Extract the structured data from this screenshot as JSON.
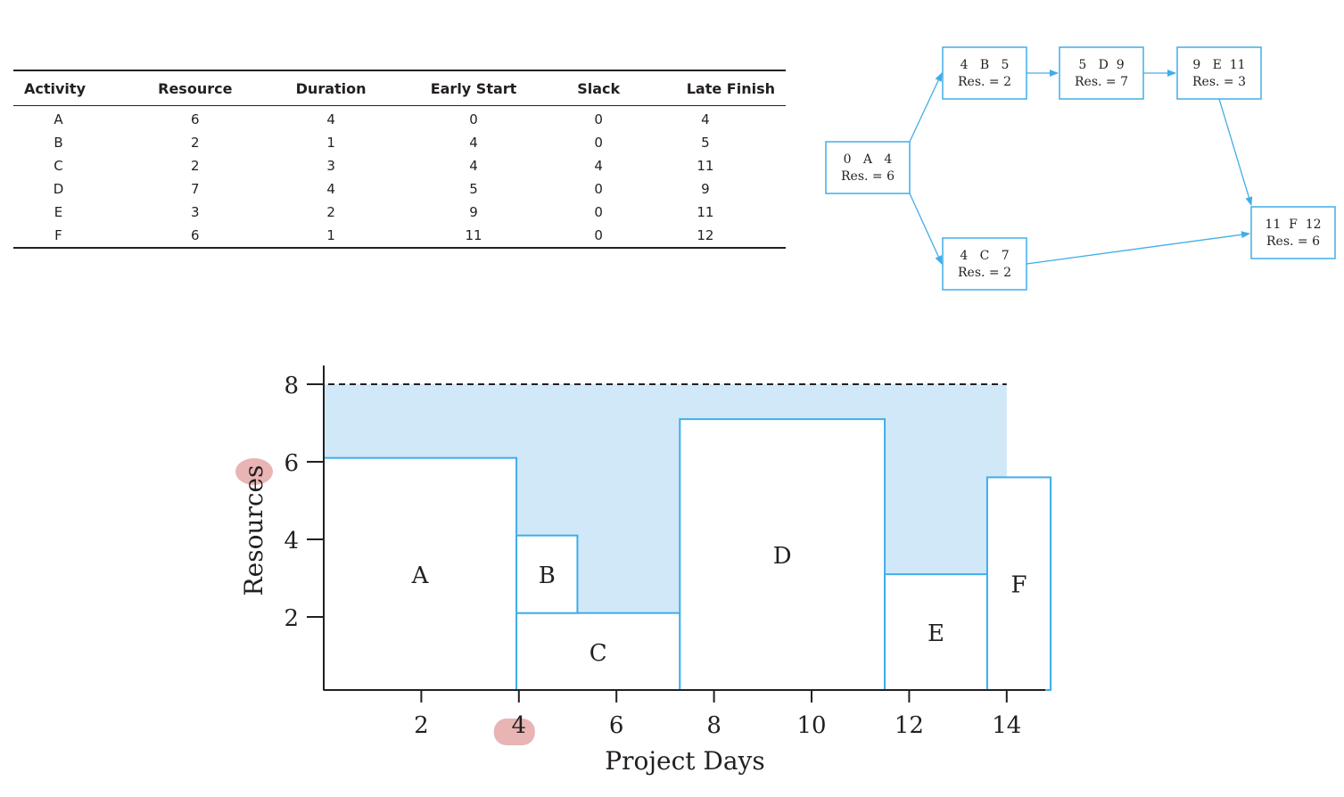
{
  "table": {
    "headers": [
      "Activity",
      "Resource",
      "Duration",
      "Early Start",
      "Slack",
      "Late Finish"
    ],
    "rows": [
      [
        "A",
        "6",
        "4",
        "0",
        "0",
        "4"
      ],
      [
        "B",
        "2",
        "1",
        "4",
        "0",
        "5"
      ],
      [
        "C",
        "2",
        "3",
        "4",
        "4",
        "11"
      ],
      [
        "D",
        "7",
        "4",
        "5",
        "0",
        "9"
      ],
      [
        "E",
        "3",
        "2",
        "9",
        "0",
        "11"
      ],
      [
        "F",
        "6",
        "1",
        "11",
        "0",
        "12"
      ]
    ]
  },
  "network": {
    "nodes": [
      {
        "id": "A",
        "top": "0   A   4",
        "bottom": "Res. = 6"
      },
      {
        "id": "B",
        "top": "4   B   5",
        "bottom": "Res. = 2"
      },
      {
        "id": "C",
        "top": "4   C   7",
        "bottom": "Res. = 2"
      },
      {
        "id": "D",
        "top": "5   D  9",
        "bottom": "Res. = 7"
      },
      {
        "id": "E",
        "top": "9   E  11",
        "bottom": "Res. = 3"
      },
      {
        "id": "F",
        "top": "11  F  12",
        "bottom": "Res. = 6"
      }
    ],
    "edges": [
      [
        "A",
        "B"
      ],
      [
        "A",
        "C"
      ],
      [
        "B",
        "D"
      ],
      [
        "D",
        "E"
      ],
      [
        "E",
        "F"
      ],
      [
        "C",
        "F"
      ]
    ],
    "colors": {
      "line": "#40ade8"
    }
  },
  "chart_data": {
    "type": "area",
    "xlabel": "Project Days",
    "ylabel": "Resources",
    "xlim": [
      0.2,
      14.8
    ],
    "ylim": [
      0.2,
      8.5
    ],
    "xticks": [
      2,
      4,
      6,
      8,
      10,
      12,
      14
    ],
    "yticks": [
      2,
      4,
      6,
      8
    ],
    "capacity_line": 8,
    "capacity_line_x": [
      0,
      14
    ],
    "available_region_color": "#d1e8f9",
    "block_outline_color": "#40ade8",
    "blocks": [
      {
        "label": "A",
        "x0": 0,
        "x1": 3.95,
        "y0": 0,
        "y1": 6.1
      },
      {
        "label": "C",
        "x0": 3.95,
        "x1": 7.3,
        "y0": 0,
        "y1": 2.1
      },
      {
        "label": "B",
        "x0": 3.95,
        "x1": 5.2,
        "y0": 2.1,
        "y1": 4.1
      },
      {
        "label": "D",
        "x0": 7.3,
        "x1": 11.5,
        "y0": 0,
        "y1": 7.1
      },
      {
        "label": "E",
        "x0": 11.5,
        "x1": 13.6,
        "y0": 0,
        "y1": 3.1
      },
      {
        "label": "F",
        "x0": 13.6,
        "x1": 14.9,
        "y0": 0,
        "y1": 5.6
      }
    ],
    "highlight_color": "#e8b4b4",
    "highlights": [
      {
        "axis": "y",
        "value": 6
      },
      {
        "axis": "x",
        "value": 4
      }
    ]
  }
}
